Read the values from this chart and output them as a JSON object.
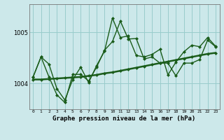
{
  "xlabel": "Graphe pression niveau de la mer (hPa)",
  "background_color": "#cce8ea",
  "grid_color": "#99cccc",
  "line_color": "#1a5c1a",
  "ylim": [
    1003.5,
    1005.55
  ],
  "yticks": [
    1004,
    1005
  ],
  "ytick_labels": [
    "1004",
    "1005"
  ],
  "x_ticks": [
    0,
    1,
    2,
    3,
    4,
    5,
    6,
    7,
    8,
    9,
    10,
    11,
    12,
    13,
    14,
    15,
    16,
    17,
    18,
    19,
    20,
    21,
    22,
    23
  ],
  "series1_x": [
    0,
    1,
    2,
    3,
    4,
    5,
    6,
    7,
    8,
    9,
    10,
    11,
    12,
    13,
    14,
    15,
    16,
    17,
    18,
    19,
    20,
    21,
    22,
    23
  ],
  "series1_y": [
    1004.13,
    1004.52,
    1004.13,
    1003.78,
    1003.63,
    1004.18,
    1004.18,
    1004.05,
    1004.32,
    1004.65,
    1004.82,
    1005.22,
    1004.87,
    1004.88,
    1004.48,
    1004.52,
    1004.4,
    1004.4,
    1004.15,
    1004.4,
    1004.4,
    1004.47,
    1004.85,
    1004.72
  ],
  "series2_x": [
    0,
    1,
    2,
    3,
    4,
    5,
    6,
    7,
    8,
    9,
    10,
    11,
    12,
    13,
    14,
    15,
    16,
    17,
    18,
    19,
    20,
    21,
    22,
    23
  ],
  "series2_y": [
    1004.08,
    1004.08,
    1004.09,
    1004.1,
    1004.11,
    1004.12,
    1004.13,
    1004.15,
    1004.17,
    1004.2,
    1004.22,
    1004.25,
    1004.28,
    1004.31,
    1004.34,
    1004.37,
    1004.4,
    1004.43,
    1004.46,
    1004.49,
    1004.52,
    1004.55,
    1004.58,
    1004.6
  ],
  "series3_x": [
    0,
    1,
    2,
    3,
    4,
    5,
    6,
    7,
    8,
    9,
    10,
    11,
    12,
    13,
    14,
    15,
    16,
    17,
    18,
    19,
    20,
    21,
    22,
    23
  ],
  "series3_y": [
    1004.13,
    1004.52,
    1004.38,
    1003.9,
    1003.68,
    1004.08,
    1004.32,
    1004.02,
    1004.35,
    1004.63,
    1005.28,
    1004.9,
    1004.93,
    1004.55,
    1004.52,
    1004.57,
    1004.67,
    1004.17,
    1004.42,
    1004.62,
    1004.75,
    1004.72,
    1004.9,
    1004.73
  ]
}
